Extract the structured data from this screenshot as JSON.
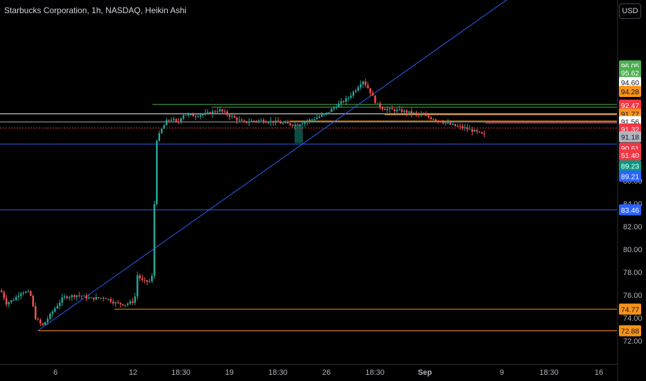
{
  "header": {
    "title": "Starbucks Corporation, 1h, NASDAQ, Heikin Ashi",
    "currency_button": "USD"
  },
  "chart_data": {
    "type": "candlestick",
    "symbol": "Starbucks Corporation",
    "interval": "1h",
    "exchange": "NASDAQ",
    "style": "Heikin Ashi",
    "ylim": [
      71.8,
      96.8
    ],
    "y_ticks": [
      "72.00",
      "74.00",
      "76.00",
      "78.00",
      "80.00",
      "82.00",
      "84.00",
      "86.00"
    ],
    "x_ticks": [
      "6",
      "12",
      "18:30",
      "19",
      "18:30",
      "26",
      "18:30",
      "Sep",
      "9",
      "18:30",
      "16"
    ],
    "colors": {
      "up": "#26a69a",
      "down": "#ef5350"
    },
    "price_path": [
      [
        0,
        76.4
      ],
      [
        8,
        75.3
      ],
      [
        18,
        75.6
      ],
      [
        30,
        76.3
      ],
      [
        42,
        76.2
      ],
      [
        50,
        74.0
      ],
      [
        60,
        73.3
      ],
      [
        75,
        74.6
      ],
      [
        90,
        75.8
      ],
      [
        110,
        76.0
      ],
      [
        130,
        75.7
      ],
      [
        150,
        75.8
      ],
      [
        165,
        75.3
      ],
      [
        180,
        75.2
      ],
      [
        193,
        75.5
      ],
      [
        196,
        77.8
      ],
      [
        205,
        77.2
      ],
      [
        215,
        77.2
      ],
      [
        220,
        77.9
      ],
      [
        222,
        86.0
      ],
      [
        225,
        89.6
      ],
      [
        232,
        90.5
      ],
      [
        240,
        91.3
      ],
      [
        248,
        91.4
      ],
      [
        255,
        91.0
      ],
      [
        262,
        91.8
      ],
      [
        280,
        91.7
      ],
      [
        300,
        91.9
      ],
      [
        315,
        92.2
      ],
      [
        330,
        91.7
      ],
      [
        350,
        91.1
      ],
      [
        370,
        91.3
      ],
      [
        390,
        91.2
      ],
      [
        410,
        91.0
      ],
      [
        425,
        90.9
      ],
      [
        440,
        91.2
      ],
      [
        455,
        91.5
      ],
      [
        470,
        91.9
      ],
      [
        485,
        92.6
      ],
      [
        500,
        93.2
      ],
      [
        512,
        94.0
      ],
      [
        522,
        94.8
      ],
      [
        532,
        93.9
      ],
      [
        542,
        92.7
      ],
      [
        552,
        92.3
      ],
      [
        565,
        92.2
      ],
      [
        580,
        92.1
      ],
      [
        595,
        91.9
      ],
      [
        610,
        91.7
      ],
      [
        625,
        91.4
      ],
      [
        640,
        91.1
      ],
      [
        655,
        90.8
      ],
      [
        670,
        90.6
      ],
      [
        685,
        90.3
      ],
      [
        700,
        89.9
      ]
    ],
    "horizontal_lines": [
      {
        "price": 92.68,
        "color": "#4caf50",
        "x_start": 220
      },
      {
        "price": 92.44,
        "color": "#4caf50",
        "x_start": 305
      },
      {
        "price": 91.86,
        "color": "#ffffff",
        "x_start": 0
      },
      {
        "price": 91.77,
        "color": "#f7931a",
        "x_start": 555
      },
      {
        "price": 91.23,
        "color": "#f7931a",
        "x_start": 418
      },
      {
        "price": 91.15,
        "color": "#b2b5be",
        "x_start": 0
      },
      {
        "price": 91.05,
        "color": "#f23645",
        "x_start": 700
      },
      {
        "price": 90.61,
        "color": "#f23645",
        "x_start": 0,
        "dashed": true
      },
      {
        "price": 89.21,
        "color": "#2962ff",
        "x_start": 0
      },
      {
        "price": 83.46,
        "color": "#2962ff",
        "x_start": 0
      },
      {
        "price": 74.77,
        "color": "#f7931a",
        "x_start": 165
      },
      {
        "price": 72.88,
        "color": "#f7931a",
        "x_start": 55
      }
    ],
    "trendline": {
      "color": "#2962ff",
      "from": [
        55,
        72.9
      ],
      "to": [
        735,
        102.0
      ]
    },
    "highlight_zone": {
      "x_start": 425,
      "x_end": 437,
      "price_top": 90.9,
      "price_bottom": 89.3,
      "color": "#0e5a52"
    },
    "price_labels": [
      {
        "text": "96.05",
        "price": 96.05,
        "bg": "#4caf50",
        "fg": "#ffffff"
      },
      {
        "text": "95.62",
        "price": 95.45,
        "bg": "#4caf50",
        "fg": "#ffffff"
      },
      {
        "text": "94.60",
        "price": 94.6,
        "bg": "#ffffff",
        "fg": "#131722"
      },
      {
        "text": "94.28",
        "price": 93.82,
        "bg": "#f7931a",
        "fg": "#131722"
      },
      {
        "text": "92.47",
        "price": 92.62,
        "bg": "#f23645",
        "fg": "#ffffff"
      },
      {
        "text": "91.77",
        "price": 91.84,
        "bg": "#f7931a",
        "fg": "#131722"
      },
      {
        "text": "91.56",
        "price": 91.18,
        "bg": "#ffffff",
        "fg": "#131722"
      },
      {
        "text": "91.32",
        "price": 90.53,
        "bg": "#f23645",
        "fg": "#ffffff"
      },
      {
        "text": "91.18",
        "price": 89.85,
        "bg": "#b2b5be",
        "fg": "#131722"
      },
      {
        "text": "90.61",
        "price": 88.85,
        "bg": "#f23645",
        "fg": "#ffffff"
      },
      {
        "text": "51:40",
        "price": 88.25,
        "bg": "#f23645",
        "fg": "#ffffff"
      },
      {
        "text": "89.23",
        "price": 87.3,
        "bg": "#089981",
        "fg": "#ffffff"
      },
      {
        "text": "89.21",
        "price": 86.4,
        "bg": "#2962ff",
        "fg": "#ffffff"
      },
      {
        "text": "83.46",
        "price": 83.46,
        "bg": "#2962ff",
        "fg": "#ffffff"
      },
      {
        "text": "74.77",
        "price": 74.77,
        "bg": "#f7931a",
        "fg": "#131722"
      },
      {
        "text": "72.88",
        "price": 72.88,
        "bg": "#f7931a",
        "fg": "#131722"
      }
    ]
  }
}
